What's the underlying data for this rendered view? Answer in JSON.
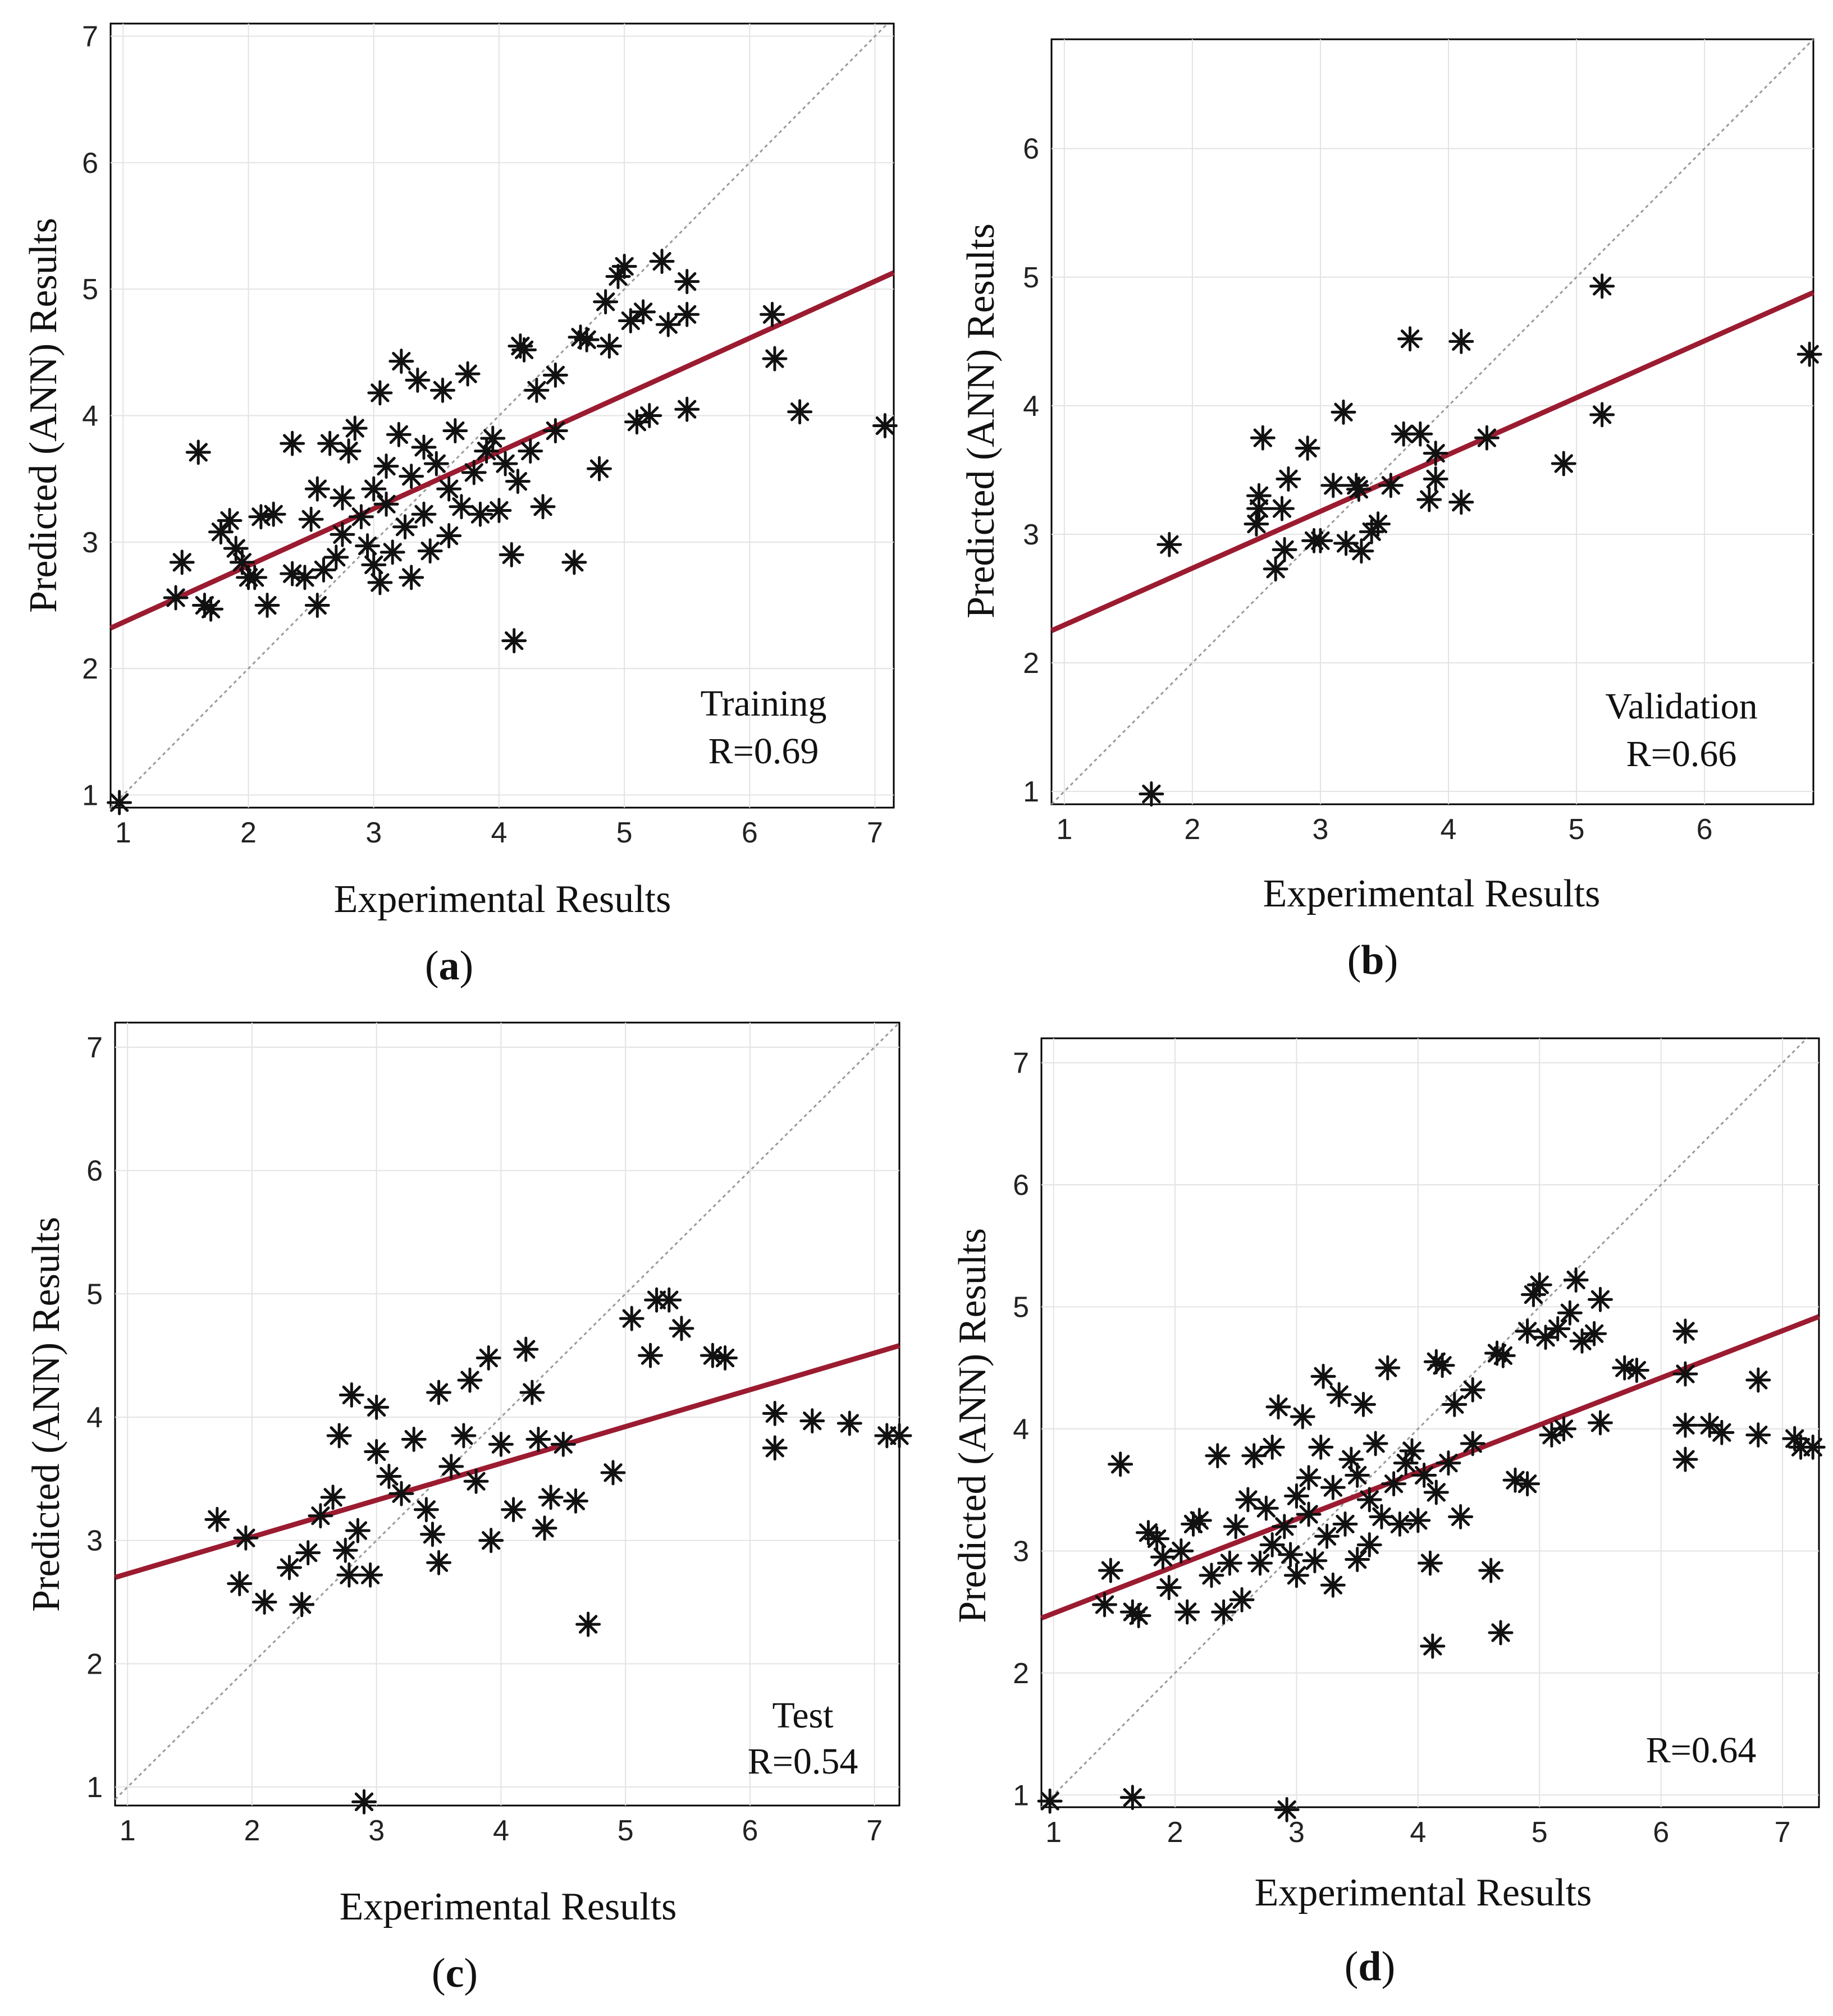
{
  "colors": {
    "fit_line": "#9b1b30",
    "identity_line": "#9a9a9a",
    "marker": "#111111",
    "frame": "#000000"
  },
  "chart_data": [
    {
      "type": "scatter",
      "panel_label": "(a)",
      "xlabel": "Experimental Results",
      "ylabel": "Predicted (ANN) Results",
      "annotation": [
        "Training",
        "R=0.69"
      ],
      "xlim": [
        0.9,
        7.15
      ],
      "ylim": [
        0.9,
        7.1
      ],
      "xticks": [
        1,
        2,
        3,
        4,
        5,
        6,
        7
      ],
      "yticks": [
        1,
        2,
        3,
        4,
        5,
        6,
        7
      ],
      "fit_line": {
        "x": [
          0.9,
          7.15
        ],
        "y": [
          2.32,
          5.13
        ]
      },
      "points": [
        [
          0.97,
          0.94
        ],
        [
          1.42,
          2.56
        ],
        [
          1.47,
          2.84
        ],
        [
          1.6,
          3.71
        ],
        [
          1.65,
          2.5
        ],
        [
          1.7,
          2.47
        ],
        [
          1.78,
          3.08
        ],
        [
          1.85,
          3.17
        ],
        [
          1.9,
          2.95
        ],
        [
          1.95,
          2.84
        ],
        [
          2.0,
          2.72
        ],
        [
          2.05,
          2.72
        ],
        [
          2.1,
          3.2
        ],
        [
          2.15,
          2.5
        ],
        [
          2.2,
          3.22
        ],
        [
          2.35,
          2.75
        ],
        [
          2.35,
          3.78
        ],
        [
          2.45,
          2.72
        ],
        [
          2.5,
          3.18
        ],
        [
          2.55,
          2.5
        ],
        [
          2.55,
          3.42
        ],
        [
          2.6,
          2.78
        ],
        [
          2.65,
          3.78
        ],
        [
          2.7,
          2.88
        ],
        [
          2.75,
          3.35
        ],
        [
          2.75,
          3.06
        ],
        [
          2.8,
          3.72
        ],
        [
          2.85,
          3.9
        ],
        [
          2.9,
          3.2
        ],
        [
          2.95,
          2.97
        ],
        [
          3.0,
          3.42
        ],
        [
          3.0,
          2.82
        ],
        [
          3.05,
          2.68
        ],
        [
          3.05,
          4.18
        ],
        [
          3.1,
          3.6
        ],
        [
          3.1,
          3.3
        ],
        [
          3.15,
          2.92
        ],
        [
          3.2,
          3.85
        ],
        [
          3.22,
          4.43
        ],
        [
          3.25,
          3.12
        ],
        [
          3.3,
          3.52
        ],
        [
          3.3,
          2.72
        ],
        [
          3.35,
          4.28
        ],
        [
          3.4,
          3.22
        ],
        [
          3.4,
          3.75
        ],
        [
          3.45,
          2.93
        ],
        [
          3.5,
          3.62
        ],
        [
          3.55,
          4.2
        ],
        [
          3.6,
          3.42
        ],
        [
          3.6,
          3.05
        ],
        [
          3.65,
          3.88
        ],
        [
          3.7,
          3.28
        ],
        [
          3.75,
          4.33
        ],
        [
          3.8,
          3.55
        ],
        [
          3.85,
          3.22
        ],
        [
          3.9,
          3.72
        ],
        [
          3.95,
          3.82
        ],
        [
          4.0,
          3.25
        ],
        [
          4.05,
          3.62
        ],
        [
          4.1,
          2.9
        ],
        [
          4.12,
          2.22
        ],
        [
          4.15,
          3.48
        ],
        [
          4.17,
          4.55
        ],
        [
          4.2,
          4.52
        ],
        [
          4.25,
          3.72
        ],
        [
          4.3,
          4.2
        ],
        [
          4.35,
          3.28
        ],
        [
          4.45,
          3.88
        ],
        [
          4.45,
          4.32
        ],
        [
          4.6,
          2.84
        ],
        [
          4.65,
          4.62
        ],
        [
          4.7,
          4.6
        ],
        [
          4.8,
          3.58
        ],
        [
          4.85,
          4.9
        ],
        [
          4.88,
          4.55
        ],
        [
          4.95,
          5.1
        ],
        [
          5.0,
          5.18
        ],
        [
          5.05,
          4.75
        ],
        [
          5.1,
          3.95
        ],
        [
          5.15,
          4.82
        ],
        [
          5.2,
          4.0
        ],
        [
          5.3,
          5.22
        ],
        [
          5.35,
          4.72
        ],
        [
          5.5,
          4.8
        ],
        [
          5.5,
          5.06
        ],
        [
          5.5,
          4.05
        ],
        [
          6.18,
          4.8
        ],
        [
          6.2,
          4.45
        ],
        [
          6.4,
          4.03
        ],
        [
          7.08,
          3.92
        ]
      ]
    },
    {
      "type": "scatter",
      "panel_label": "(b)",
      "xlabel": "Experimental Results",
      "ylabel": "Predicted (ANN) Results",
      "annotation": [
        "Validation",
        "R=0.66"
      ],
      "xlim": [
        0.9,
        6.85
      ],
      "ylim": [
        0.9,
        6.85
      ],
      "xticks": [
        1,
        2,
        3,
        4,
        5,
        6
      ],
      "yticks": [
        1,
        2,
        3,
        4,
        5,
        6
      ],
      "fit_line": {
        "x": [
          0.9,
          6.85
        ],
        "y": [
          2.25,
          4.88
        ]
      },
      "points": [
        [
          1.68,
          0.98
        ],
        [
          1.82,
          2.92
        ],
        [
          2.5,
          3.08
        ],
        [
          2.52,
          3.3
        ],
        [
          2.52,
          3.2
        ],
        [
          2.55,
          3.75
        ],
        [
          2.65,
          2.73
        ],
        [
          2.7,
          3.2
        ],
        [
          2.72,
          2.88
        ],
        [
          2.75,
          3.43
        ],
        [
          2.9,
          3.67
        ],
        [
          2.95,
          2.95
        ],
        [
          3.0,
          2.95
        ],
        [
          3.1,
          3.38
        ],
        [
          3.18,
          3.95
        ],
        [
          3.2,
          2.93
        ],
        [
          3.28,
          3.38
        ],
        [
          3.3,
          3.35
        ],
        [
          3.32,
          2.87
        ],
        [
          3.4,
          3.02
        ],
        [
          3.45,
          3.08
        ],
        [
          3.55,
          3.38
        ],
        [
          3.65,
          3.78
        ],
        [
          3.7,
          4.52
        ],
        [
          3.78,
          3.78
        ],
        [
          3.85,
          3.27
        ],
        [
          3.9,
          3.43
        ],
        [
          3.9,
          3.63
        ],
        [
          4.1,
          4.5
        ],
        [
          4.1,
          3.25
        ],
        [
          4.3,
          3.75
        ],
        [
          4.9,
          3.55
        ],
        [
          5.2,
          4.93
        ],
        [
          5.2,
          3.93
        ],
        [
          6.82,
          4.4
        ]
      ]
    },
    {
      "type": "scatter",
      "panel_label": "(c)",
      "xlabel": "Experimental Results",
      "ylabel": "Predicted (ANN) Results",
      "annotation": [
        "Test",
        "R=0.54"
      ],
      "xlim": [
        0.9,
        7.2
      ],
      "ylim": [
        0.85,
        7.2
      ],
      "xticks": [
        1,
        2,
        3,
        4,
        5,
        6,
        7
      ],
      "yticks": [
        1,
        2,
        3,
        4,
        5,
        6,
        7
      ],
      "fit_line": {
        "x": [
          0.9,
          7.2
        ],
        "y": [
          2.7,
          4.58
        ]
      },
      "points": [
        [
          1.72,
          3.17
        ],
        [
          1.9,
          2.65
        ],
        [
          1.95,
          3.02
        ],
        [
          2.1,
          2.5
        ],
        [
          2.3,
          2.78
        ],
        [
          2.4,
          2.48
        ],
        [
          2.45,
          2.9
        ],
        [
          2.55,
          3.2
        ],
        [
          2.65,
          3.35
        ],
        [
          2.7,
          3.85
        ],
        [
          2.75,
          2.92
        ],
        [
          2.78,
          2.72
        ],
        [
          2.8,
          4.18
        ],
        [
          2.85,
          3.08
        ],
        [
          2.9,
          0.88
        ],
        [
          2.95,
          2.72
        ],
        [
          3.0,
          3.72
        ],
        [
          3.0,
          4.08
        ],
        [
          3.1,
          3.52
        ],
        [
          3.2,
          3.38
        ],
        [
          3.3,
          3.82
        ],
        [
          3.4,
          3.25
        ],
        [
          3.45,
          3.05
        ],
        [
          3.5,
          4.2
        ],
        [
          3.5,
          2.82
        ],
        [
          3.6,
          3.6
        ],
        [
          3.7,
          3.85
        ],
        [
          3.75,
          4.3
        ],
        [
          3.8,
          3.48
        ],
        [
          3.9,
          4.48
        ],
        [
          3.92,
          3.0
        ],
        [
          4.0,
          3.78
        ],
        [
          4.1,
          3.25
        ],
        [
          4.2,
          4.55
        ],
        [
          4.25,
          4.2
        ],
        [
          4.3,
          3.82
        ],
        [
          4.35,
          3.1
        ],
        [
          4.4,
          3.35
        ],
        [
          4.5,
          3.78
        ],
        [
          4.6,
          3.32
        ],
        [
          4.7,
          2.32
        ],
        [
          4.9,
          3.55
        ],
        [
          5.05,
          4.8
        ],
        [
          5.2,
          4.5
        ],
        [
          5.25,
          4.95
        ],
        [
          5.35,
          4.95
        ],
        [
          5.45,
          4.72
        ],
        [
          5.7,
          4.5
        ],
        [
          5.8,
          4.48
        ],
        [
          6.2,
          4.03
        ],
        [
          6.2,
          3.75
        ],
        [
          6.5,
          3.97
        ],
        [
          6.8,
          3.95
        ],
        [
          7.1,
          3.85
        ],
        [
          7.2,
          3.85
        ]
      ]
    },
    {
      "type": "scatter",
      "panel_label": "(d)",
      "xlabel": "Experimental Results",
      "ylabel": "Predicted (ANN) Results",
      "annotation": [
        "",
        "R=0.64"
      ],
      "xlim": [
        0.9,
        7.3
      ],
      "ylim": [
        0.9,
        7.2
      ],
      "xticks": [
        1,
        2,
        3,
        4,
        5,
        6,
        7
      ],
      "yticks": [
        1,
        2,
        3,
        4,
        5,
        6,
        7
      ],
      "fit_line": {
        "x": [
          0.9,
          7.3
        ],
        "y": [
          2.45,
          4.92
        ]
      },
      "points": [
        [
          0.97,
          0.95
        ],
        [
          1.42,
          2.56
        ],
        [
          1.47,
          2.84
        ],
        [
          1.55,
          3.71
        ],
        [
          1.65,
          2.5
        ],
        [
          1.65,
          0.98
        ],
        [
          1.7,
          2.47
        ],
        [
          1.78,
          3.15
        ],
        [
          1.85,
          3.1
        ],
        [
          1.9,
          2.95
        ],
        [
          1.95,
          2.7
        ],
        [
          2.05,
          3.0
        ],
        [
          2.1,
          2.5
        ],
        [
          2.15,
          3.22
        ],
        [
          2.2,
          3.25
        ],
        [
          2.3,
          2.8
        ],
        [
          2.35,
          3.78
        ],
        [
          2.4,
          2.5
        ],
        [
          2.45,
          2.9
        ],
        [
          2.5,
          3.2
        ],
        [
          2.55,
          2.6
        ],
        [
          2.6,
          3.42
        ],
        [
          2.65,
          3.78
        ],
        [
          2.7,
          2.9
        ],
        [
          2.75,
          3.35
        ],
        [
          2.8,
          3.05
        ],
        [
          2.8,
          3.85
        ],
        [
          2.85,
          4.18
        ],
        [
          2.9,
          3.2
        ],
        [
          2.92,
          0.88
        ],
        [
          2.95,
          2.97
        ],
        [
          3.0,
          3.45
        ],
        [
          3.0,
          2.8
        ],
        [
          3.05,
          4.1
        ],
        [
          3.1,
          3.6
        ],
        [
          3.1,
          3.3
        ],
        [
          3.15,
          2.92
        ],
        [
          3.2,
          3.85
        ],
        [
          3.22,
          4.43
        ],
        [
          3.25,
          3.12
        ],
        [
          3.3,
          3.52
        ],
        [
          3.3,
          2.72
        ],
        [
          3.35,
          4.28
        ],
        [
          3.4,
          3.22
        ],
        [
          3.45,
          3.75
        ],
        [
          3.5,
          2.93
        ],
        [
          3.5,
          3.62
        ],
        [
          3.55,
          4.2
        ],
        [
          3.6,
          3.42
        ],
        [
          3.6,
          3.05
        ],
        [
          3.65,
          3.88
        ],
        [
          3.7,
          3.28
        ],
        [
          3.75,
          4.5
        ],
        [
          3.8,
          3.55
        ],
        [
          3.85,
          3.22
        ],
        [
          3.9,
          3.72
        ],
        [
          3.95,
          3.82
        ],
        [
          4.0,
          3.25
        ],
        [
          4.05,
          3.62
        ],
        [
          4.1,
          2.9
        ],
        [
          4.12,
          2.22
        ],
        [
          4.15,
          3.48
        ],
        [
          4.15,
          4.55
        ],
        [
          4.2,
          4.52
        ],
        [
          4.25,
          3.72
        ],
        [
          4.3,
          4.2
        ],
        [
          4.35,
          3.28
        ],
        [
          4.45,
          3.88
        ],
        [
          4.45,
          4.32
        ],
        [
          4.6,
          2.84
        ],
        [
          4.65,
          4.62
        ],
        [
          4.68,
          2.33
        ],
        [
          4.7,
          4.6
        ],
        [
          4.8,
          3.58
        ],
        [
          4.9,
          3.55
        ],
        [
          4.9,
          4.8
        ],
        [
          4.95,
          5.1
        ],
        [
          5.0,
          5.18
        ],
        [
          5.05,
          4.75
        ],
        [
          5.1,
          3.95
        ],
        [
          5.15,
          4.82
        ],
        [
          5.2,
          4.0
        ],
        [
          5.25,
          4.95
        ],
        [
          5.3,
          5.22
        ],
        [
          5.35,
          4.72
        ],
        [
          5.45,
          4.78
        ],
        [
          5.5,
          5.06
        ],
        [
          5.5,
          4.05
        ],
        [
          5.7,
          4.5
        ],
        [
          5.8,
          4.48
        ],
        [
          6.2,
          4.8
        ],
        [
          6.2,
          4.45
        ],
        [
          6.2,
          4.03
        ],
        [
          6.2,
          3.75
        ],
        [
          6.4,
          4.03
        ],
        [
          6.5,
          3.97
        ],
        [
          6.8,
          4.4
        ],
        [
          6.8,
          3.95
        ],
        [
          7.1,
          3.92
        ],
        [
          7.15,
          3.85
        ],
        [
          7.25,
          3.85
        ]
      ]
    }
  ]
}
